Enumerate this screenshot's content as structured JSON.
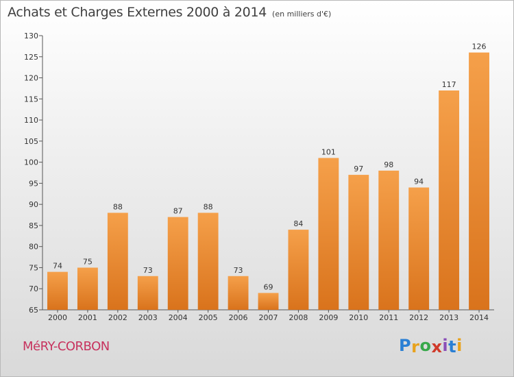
{
  "title": "Achats et Charges Externes 2000 à 2014",
  "subtitle": "(en milliers d'€)",
  "location": "MéRY-CORBON",
  "brand": {
    "letters": [
      "P",
      "r",
      "o",
      "x",
      "i",
      "t",
      "i"
    ],
    "colors": [
      "#2a7fd4",
      "#e8a21c",
      "#37a84a",
      "#d03a2a",
      "#8a4fb8",
      "#2a7fd4",
      "#e8a21c"
    ]
  },
  "colors": {
    "bar_top": "#f5a04a",
    "bar_bottom": "#d9731c",
    "location": "#c7325e"
  },
  "chart_data": {
    "type": "bar",
    "categories": [
      "2000",
      "2001",
      "2002",
      "2003",
      "2004",
      "2005",
      "2006",
      "2007",
      "2008",
      "2009",
      "2010",
      "2011",
      "2012",
      "2013",
      "2014"
    ],
    "values": [
      74,
      75,
      88,
      73,
      87,
      88,
      73,
      69,
      84,
      101,
      97,
      98,
      94,
      117,
      126
    ],
    "ylim": [
      65,
      130
    ],
    "yticks": [
      65,
      70,
      75,
      80,
      85,
      90,
      95,
      100,
      105,
      110,
      115,
      120,
      125,
      130
    ],
    "grid": false,
    "data_labels": true
  }
}
